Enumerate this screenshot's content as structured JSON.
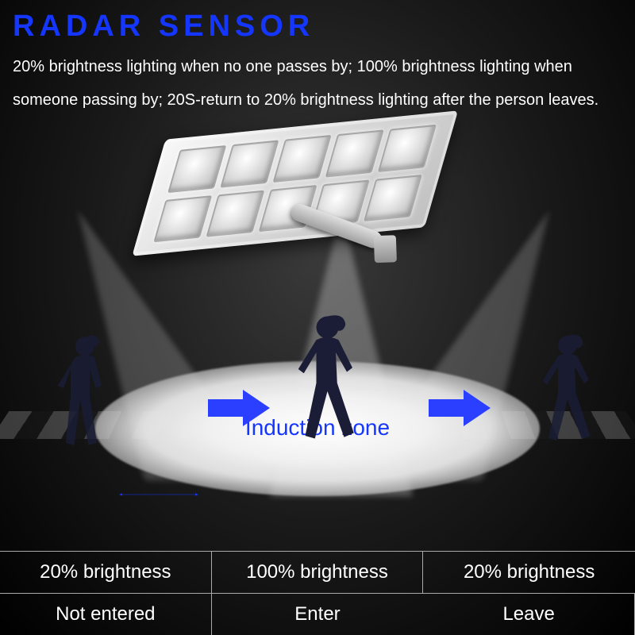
{
  "colors": {
    "accent_blue": "#1436ff",
    "text_white": "#ffffff",
    "silhouette": "#1a1d35",
    "arrow_fill": "#2a3fff"
  },
  "title": "RADAR SENSOR",
  "description": "20% brightness lighting when no one passes by; 100% brightness lighting when someone passing by;  20S-return to 20% brightness lighting after the person leaves.",
  "zone_label": "Induction zone",
  "table": {
    "row_brightness": [
      "20% brightness",
      "100% brightness",
      "20% brightness"
    ],
    "row_state": [
      "Not entered",
      "Enter",
      "Leave"
    ]
  },
  "lamp": {
    "led_cols": 5,
    "led_rows": 2
  }
}
